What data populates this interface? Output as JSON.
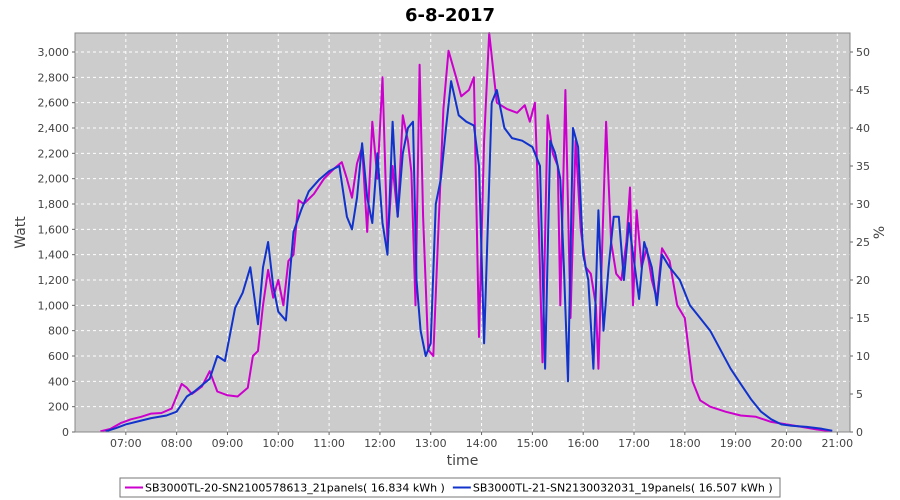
{
  "chart_data": {
    "type": "line",
    "title": "6-8-2017",
    "xlabel": "time",
    "ylabel": "Watt",
    "y2label": "%",
    "xlim": [
      6.0,
      21.25
    ],
    "ylim": [
      0,
      3150
    ],
    "y2lim": [
      0,
      52.5
    ],
    "x_ticks": [
      7,
      8,
      9,
      10,
      11,
      12,
      13,
      14,
      15,
      16,
      17,
      18,
      19,
      20,
      21
    ],
    "x_tick_labels": [
      "07:00",
      "08:00",
      "09:00",
      "10:00",
      "11:00",
      "12:00",
      "13:00",
      "14:00",
      "15:00",
      "16:00",
      "17:00",
      "18:00",
      "19:00",
      "20:00",
      "21:00"
    ],
    "y_ticks": [
      0,
      200,
      400,
      600,
      800,
      1000,
      1200,
      1400,
      1600,
      1800,
      2000,
      2200,
      2400,
      2600,
      2800,
      3000
    ],
    "y_tick_labels": [
      "0",
      "200",
      "400",
      "600",
      "800",
      "1,000",
      "1,200",
      "1,400",
      "1,600",
      "1,800",
      "2,000",
      "2,200",
      "2,400",
      "2,600",
      "2,800",
      "3,000"
    ],
    "y2_ticks": [
      0,
      5,
      10,
      15,
      20,
      25,
      30,
      35,
      40,
      45,
      50
    ],
    "y2_tick_labels": [
      "0",
      "5",
      "10",
      "15",
      "20",
      "25",
      "30",
      "35",
      "40",
      "45",
      "50"
    ],
    "grid": true,
    "legend_position": "bottom",
    "background": "#cccccc",
    "series": [
      {
        "name": "SB3000TL-20-SN2100578613_21panels( 16.834 kWh )",
        "color": "#cc00cc",
        "points": [
          [
            6.5,
            5
          ],
          [
            6.7,
            25
          ],
          [
            6.9,
            70
          ],
          [
            7.1,
            100
          ],
          [
            7.3,
            120
          ],
          [
            7.5,
            145
          ],
          [
            7.7,
            150
          ],
          [
            7.9,
            185
          ],
          [
            8.1,
            380
          ],
          [
            8.2,
            350
          ],
          [
            8.3,
            300
          ],
          [
            8.4,
            330
          ],
          [
            8.5,
            360
          ],
          [
            8.65,
            480
          ],
          [
            8.8,
            320
          ],
          [
            9.0,
            290
          ],
          [
            9.2,
            280
          ],
          [
            9.4,
            350
          ],
          [
            9.5,
            600
          ],
          [
            9.6,
            640
          ],
          [
            9.7,
            1000
          ],
          [
            9.8,
            1280
          ],
          [
            9.9,
            1060
          ],
          [
            10.0,
            1200
          ],
          [
            10.1,
            1000
          ],
          [
            10.2,
            1350
          ],
          [
            10.3,
            1400
          ],
          [
            10.4,
            1830
          ],
          [
            10.5,
            1800
          ],
          [
            10.7,
            1880
          ],
          [
            10.9,
            2000
          ],
          [
            11.1,
            2080
          ],
          [
            11.25,
            2130
          ],
          [
            11.35,
            2000
          ],
          [
            11.45,
            1850
          ],
          [
            11.55,
            2120
          ],
          [
            11.65,
            2250
          ],
          [
            11.75,
            1580
          ],
          [
            11.85,
            2450
          ],
          [
            11.95,
            2000
          ],
          [
            12.05,
            2800
          ],
          [
            12.15,
            1480
          ],
          [
            12.25,
            2100
          ],
          [
            12.35,
            1700
          ],
          [
            12.45,
            2500
          ],
          [
            12.55,
            2300
          ],
          [
            12.62,
            2050
          ],
          [
            12.7,
            1000
          ],
          [
            12.78,
            2900
          ],
          [
            12.85,
            1700
          ],
          [
            12.95,
            650
          ],
          [
            13.05,
            600
          ],
          [
            13.15,
            1600
          ],
          [
            13.25,
            2550
          ],
          [
            13.35,
            3010
          ],
          [
            13.5,
            2800
          ],
          [
            13.6,
            2650
          ],
          [
            13.75,
            2700
          ],
          [
            13.85,
            2800
          ],
          [
            13.95,
            750
          ],
          [
            14.05,
            2300
          ],
          [
            14.15,
            3150
          ],
          [
            14.3,
            2600
          ],
          [
            14.5,
            2550
          ],
          [
            14.7,
            2520
          ],
          [
            14.85,
            2580
          ],
          [
            14.95,
            2450
          ],
          [
            15.05,
            2600
          ],
          [
            15.1,
            2000
          ],
          [
            15.2,
            550
          ],
          [
            15.3,
            2500
          ],
          [
            15.4,
            2200
          ],
          [
            15.5,
            2100
          ],
          [
            15.55,
            1000
          ],
          [
            15.65,
            2700
          ],
          [
            15.75,
            900
          ],
          [
            15.85,
            2300
          ],
          [
            15.95,
            1600
          ],
          [
            16.05,
            1300
          ],
          [
            16.15,
            1250
          ],
          [
            16.25,
            1000
          ],
          [
            16.3,
            500
          ],
          [
            16.45,
            2450
          ],
          [
            16.55,
            1500
          ],
          [
            16.65,
            1250
          ],
          [
            16.75,
            1200
          ],
          [
            16.85,
            1500
          ],
          [
            16.92,
            1930
          ],
          [
            16.98,
            1000
          ],
          [
            17.05,
            1750
          ],
          [
            17.15,
            1300
          ],
          [
            17.25,
            1450
          ],
          [
            17.35,
            1200
          ],
          [
            17.45,
            1050
          ],
          [
            17.55,
            1450
          ],
          [
            17.7,
            1350
          ],
          [
            17.85,
            1000
          ],
          [
            18.0,
            900
          ],
          [
            18.15,
            400
          ],
          [
            18.3,
            250
          ],
          [
            18.5,
            200
          ],
          [
            18.8,
            160
          ],
          [
            19.1,
            130
          ],
          [
            19.4,
            120
          ],
          [
            19.7,
            80
          ],
          [
            20.0,
            60
          ],
          [
            20.3,
            40
          ],
          [
            20.6,
            20
          ],
          [
            20.9,
            5
          ]
        ]
      },
      {
        "name": "SB3000TL-21-SN2130032031_19panels( 16.507 kWh )",
        "color": "#1133cc",
        "points": [
          [
            6.6,
            5
          ],
          [
            6.8,
            30
          ],
          [
            7.0,
            60
          ],
          [
            7.2,
            80
          ],
          [
            7.5,
            110
          ],
          [
            7.8,
            130
          ],
          [
            8.0,
            160
          ],
          [
            8.2,
            280
          ],
          [
            8.35,
            320
          ],
          [
            8.5,
            370
          ],
          [
            8.65,
            420
          ],
          [
            8.8,
            600
          ],
          [
            8.95,
            560
          ],
          [
            9.15,
            980
          ],
          [
            9.3,
            1100
          ],
          [
            9.45,
            1300
          ],
          [
            9.6,
            850
          ],
          [
            9.7,
            1300
          ],
          [
            9.8,
            1500
          ],
          [
            9.9,
            1150
          ],
          [
            10.0,
            950
          ],
          [
            10.15,
            880
          ],
          [
            10.3,
            1580
          ],
          [
            10.45,
            1750
          ],
          [
            10.6,
            1900
          ],
          [
            10.8,
            1990
          ],
          [
            11.0,
            2060
          ],
          [
            11.2,
            2100
          ],
          [
            11.35,
            1700
          ],
          [
            11.45,
            1600
          ],
          [
            11.55,
            1850
          ],
          [
            11.65,
            2280
          ],
          [
            11.75,
            1850
          ],
          [
            11.85,
            1650
          ],
          [
            11.95,
            2200
          ],
          [
            12.05,
            1650
          ],
          [
            12.15,
            1400
          ],
          [
            12.25,
            2450
          ],
          [
            12.35,
            1700
          ],
          [
            12.45,
            2200
          ],
          [
            12.55,
            2400
          ],
          [
            12.65,
            2450
          ],
          [
            12.72,
            1200
          ],
          [
            12.8,
            800
          ],
          [
            12.9,
            600
          ],
          [
            13.0,
            700
          ],
          [
            13.1,
            1800
          ],
          [
            13.2,
            2000
          ],
          [
            13.3,
            2400
          ],
          [
            13.4,
            2770
          ],
          [
            13.55,
            2500
          ],
          [
            13.7,
            2450
          ],
          [
            13.85,
            2420
          ],
          [
            13.95,
            2100
          ],
          [
            14.05,
            700
          ],
          [
            14.2,
            2600
          ],
          [
            14.3,
            2700
          ],
          [
            14.45,
            2400
          ],
          [
            14.6,
            2320
          ],
          [
            14.8,
            2300
          ],
          [
            15.0,
            2250
          ],
          [
            15.15,
            2100
          ],
          [
            15.25,
            500
          ],
          [
            15.35,
            2300
          ],
          [
            15.45,
            2200
          ],
          [
            15.55,
            2000
          ],
          [
            15.62,
            1300
          ],
          [
            15.7,
            400
          ],
          [
            15.8,
            2400
          ],
          [
            15.9,
            2250
          ],
          [
            16.0,
            1400
          ],
          [
            16.1,
            1200
          ],
          [
            16.2,
            500
          ],
          [
            16.3,
            1750
          ],
          [
            16.4,
            800
          ],
          [
            16.5,
            1300
          ],
          [
            16.6,
            1700
          ],
          [
            16.7,
            1700
          ],
          [
            16.8,
            1200
          ],
          [
            16.9,
            1650
          ],
          [
            17.0,
            1350
          ],
          [
            17.1,
            1050
          ],
          [
            17.2,
            1500
          ],
          [
            17.35,
            1300
          ],
          [
            17.45,
            1000
          ],
          [
            17.55,
            1400
          ],
          [
            17.7,
            1300
          ],
          [
            17.9,
            1200
          ],
          [
            18.1,
            1000
          ],
          [
            18.3,
            900
          ],
          [
            18.5,
            800
          ],
          [
            18.7,
            650
          ],
          [
            18.9,
            500
          ],
          [
            19.1,
            380
          ],
          [
            19.3,
            260
          ],
          [
            19.5,
            160
          ],
          [
            19.7,
            100
          ],
          [
            19.9,
            60
          ],
          [
            20.1,
            50
          ],
          [
            20.4,
            40
          ],
          [
            20.7,
            25
          ],
          [
            20.9,
            10
          ]
        ]
      }
    ]
  }
}
